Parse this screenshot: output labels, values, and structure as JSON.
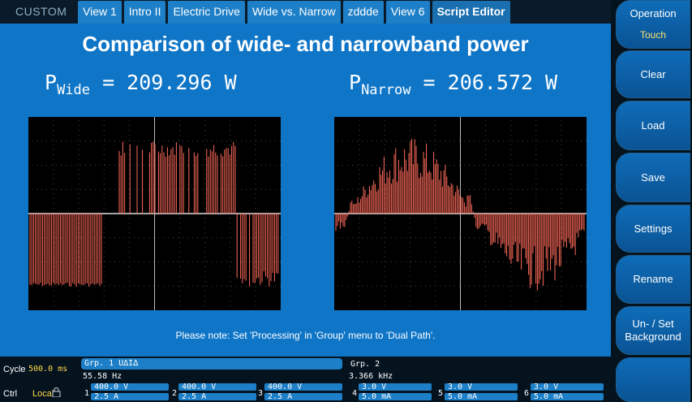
{
  "app": {
    "brand": "CUSTOM"
  },
  "tabs": [
    "View 1",
    "Intro II",
    "Electric Drive",
    "Wide vs. Narrow",
    "zddde",
    "View 6",
    "Script Editor"
  ],
  "main": {
    "title": "Comparison of wide- and narrowband power",
    "wide": {
      "symbol": "P",
      "subscript": "Wide",
      "value": "= 209.296 W"
    },
    "narrow": {
      "symbol": "P",
      "subscript": "Narrow",
      "value": "= 206.572 W"
    },
    "note": "Please note: Set 'Processing' in 'Group' menu to 'Dual Path'."
  },
  "sidebar": {
    "operation": {
      "label": "Operation",
      "value": "Touch"
    },
    "clear": "Clear",
    "load": "Load",
    "save": "Save",
    "settings": "Settings",
    "rename": "Rename",
    "background": {
      "line1": "Un- / Set",
      "line2": "Background"
    }
  },
  "status": {
    "cycle_label": "Cycle",
    "cycle_value": "500.0 ms",
    "ctrl_label": "Ctrl",
    "ctrl_value": "Local",
    "grp1": {
      "label": "Grp. 1 U∆I∆",
      "freq": "55.58 Hz"
    },
    "grp2": {
      "label": "Grp. 2",
      "freq": "3.366 kHz"
    },
    "channels": [
      {
        "num": "1",
        "u": "400.0 V",
        "i": "2.5 A"
      },
      {
        "num": "2",
        "u": "400.0 V",
        "i": "2.5 A"
      },
      {
        "num": "3",
        "u": "400.0 V",
        "i": "2.5 A"
      },
      {
        "num": "4",
        "u": "3.0 V",
        "i": "5.0 mA"
      },
      {
        "num": "5",
        "u": "3.0 V",
        "i": "5.0 mA"
      },
      {
        "num": "6",
        "u": "3.0 V",
        "i": "5.0 mA"
      }
    ]
  },
  "colors": {
    "panel": "#0f75c7",
    "tab": "#1d7fc7",
    "trace": "#ff6a5a",
    "yellow": "#ffd84a"
  }
}
